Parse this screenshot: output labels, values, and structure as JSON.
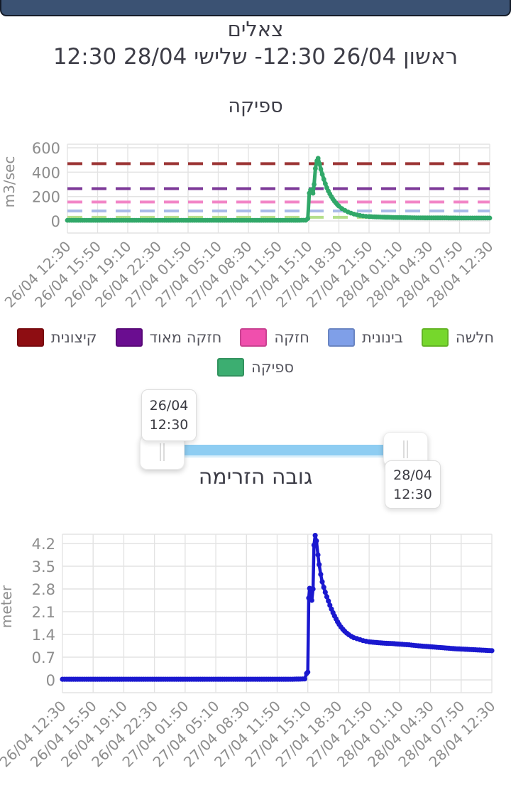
{
  "header": {
    "station_name": "צאלים",
    "date_range": "ראשון 26/04 12:30- שלישי 28/04 12:30"
  },
  "slider": {
    "start_date": "26/04",
    "start_time": "12:30",
    "end_date": "28/04",
    "end_time": "12:30",
    "track_color": "#8ecdf2"
  },
  "legend": {
    "row1": [
      {
        "label": "קיצונית",
        "color": "#8e0d12"
      },
      {
        "label": "חזקה מאוד",
        "color": "#6a0d90"
      },
      {
        "label": "חזקה",
        "color": "#f04fad"
      },
      {
        "label": "בינונית",
        "color": "#7f9fe8"
      },
      {
        "label": "חלשה",
        "color": "#76d72c"
      }
    ],
    "row2": [
      {
        "label": "ספיקה",
        "color": "#3cae71"
      }
    ]
  },
  "chart_data": [
    {
      "type": "line",
      "title": "ספיקה",
      "ylabel": "m3/sec",
      "yticks": [
        0,
        200,
        400,
        600
      ],
      "ylim": [
        0,
        600
      ],
      "grid": true,
      "x_tick_labels": [
        "26/04 12:30",
        "26/04 15:50",
        "26/04 19:10",
        "26/04 22:30",
        "27/04 01:50",
        "27/04 05:10",
        "27/04 08:30",
        "27/04 11:50",
        "27/04 15:10",
        "27/04 18:30",
        "27/04 21:50",
        "28/04 01:10",
        "28/04 04:30",
        "28/04 07:50",
        "28/04 12:30"
      ],
      "x_unit": "tick-index",
      "thresholds": [
        {
          "name": "קיצונית",
          "value": 470,
          "line_color": "#9c3434"
        },
        {
          "name": "חזקה מאוד",
          "value": 265,
          "line_color": "#7d3a99"
        },
        {
          "name": "חזקה",
          "value": 155,
          "line_color": "#f285c6"
        },
        {
          "name": "בינונית",
          "value": 82,
          "line_color": "#a9bbe8"
        },
        {
          "name": "חלשה",
          "value": 30,
          "line_color": "#b5df8b"
        }
      ],
      "series": [
        {
          "name": "ספיקה",
          "color": "#31a869",
          "points": [
            [
              0,
              5
            ],
            [
              0.5,
              5
            ],
            [
              1,
              5
            ],
            [
              1.5,
              5
            ],
            [
              2,
              5
            ],
            [
              2.5,
              5
            ],
            [
              3,
              5
            ],
            [
              3.5,
              5
            ],
            [
              4,
              5
            ],
            [
              4.5,
              5
            ],
            [
              5,
              5
            ],
            [
              5.5,
              5
            ],
            [
              6,
              5
            ],
            [
              6.5,
              5
            ],
            [
              7,
              5
            ],
            [
              7.5,
              5
            ],
            [
              7.9,
              6
            ],
            [
              7.97,
              20
            ],
            [
              8.02,
              228
            ],
            [
              8.06,
              256
            ],
            [
              8.1,
              240
            ],
            [
              8.14,
              227
            ],
            [
              8.18,
              300
            ],
            [
              8.22,
              430
            ],
            [
              8.27,
              492
            ],
            [
              8.31,
              514
            ],
            [
              8.36,
              468
            ],
            [
              8.4,
              425
            ],
            [
              8.45,
              382
            ],
            [
              8.5,
              342
            ],
            [
              8.55,
              305
            ],
            [
              8.6,
              272
            ],
            [
              8.65,
              245
            ],
            [
              8.7,
              222
            ],
            [
              8.75,
              200
            ],
            [
              8.8,
              180
            ],
            [
              8.85,
              163
            ],
            [
              8.9,
              148
            ],
            [
              8.95,
              134
            ],
            [
              9,
              122
            ],
            [
              9.1,
              101
            ],
            [
              9.2,
              86
            ],
            [
              9.3,
              74
            ],
            [
              9.4,
              64
            ],
            [
              9.5,
              56
            ],
            [
              9.6,
              50
            ],
            [
              9.7,
              45
            ],
            [
              9.8,
              41
            ],
            [
              9.9,
              38
            ],
            [
              10,
              36
            ],
            [
              10.25,
              33
            ],
            [
              10.5,
              31
            ],
            [
              10.75,
              29
            ],
            [
              11,
              28
            ],
            [
              11.5,
              26
            ],
            [
              12,
              25
            ],
            [
              12.5,
              25
            ],
            [
              13,
              24
            ],
            [
              13.5,
              24
            ],
            [
              14,
              24
            ]
          ]
        }
      ]
    },
    {
      "type": "line",
      "title": "גובה הזרימה",
      "ylabel": "meter",
      "yticks": [
        0,
        0.7,
        1.4,
        2.1,
        2.8,
        3.5,
        4.2
      ],
      "ylim": [
        0,
        4.5
      ],
      "grid": true,
      "x_tick_labels": [
        "26/04 12:30",
        "26/04 15:50",
        "26/04 19:10",
        "26/04 22:30",
        "27/04 01:50",
        "27/04 05:10",
        "27/04 08:30",
        "27/04 11:50",
        "27/04 15:10",
        "27/04 18:30",
        "27/04 21:50",
        "28/04 01:10",
        "28/04 04:30",
        "28/04 07:50",
        "28/04 12:30"
      ],
      "x_unit": "tick-index",
      "series": [
        {
          "name": "גובה הזרימה",
          "color": "#1a18cf",
          "points": [
            [
              0,
              0.02
            ],
            [
              0.5,
              0.02
            ],
            [
              1,
              0.02
            ],
            [
              1.5,
              0.02
            ],
            [
              2,
              0.02
            ],
            [
              2.5,
              0.02
            ],
            [
              3,
              0.02
            ],
            [
              3.5,
              0.02
            ],
            [
              4,
              0.02
            ],
            [
              4.5,
              0.02
            ],
            [
              5,
              0.02
            ],
            [
              5.5,
              0.02
            ],
            [
              6,
              0.02
            ],
            [
              6.5,
              0.02
            ],
            [
              7,
              0.02
            ],
            [
              7.5,
              0.02
            ],
            [
              7.9,
              0.03
            ],
            [
              7.96,
              0.2
            ],
            [
              8,
              0.24
            ],
            [
              8.03,
              2.52
            ],
            [
              8.06,
              2.82
            ],
            [
              8.1,
              2.55
            ],
            [
              8.13,
              2.45
            ],
            [
              8.17,
              2.8
            ],
            [
              8.2,
              4.15
            ],
            [
              8.24,
              4.45
            ],
            [
              8.28,
              4.28
            ],
            [
              8.33,
              3.85
            ],
            [
              8.37,
              3.55
            ],
            [
              8.42,
              3.25
            ],
            [
              8.47,
              3.02
            ],
            [
              8.52,
              2.85
            ],
            [
              8.57,
              2.7
            ],
            [
              8.62,
              2.56
            ],
            [
              8.67,
              2.43
            ],
            [
              8.72,
              2.3
            ],
            [
              8.77,
              2.18
            ],
            [
              8.82,
              2.07
            ],
            [
              8.87,
              1.97
            ],
            [
              8.92,
              1.88
            ],
            [
              8.97,
              1.79
            ],
            [
              9.02,
              1.71
            ],
            [
              9.08,
              1.63
            ],
            [
              9.14,
              1.56
            ],
            [
              9.2,
              1.5
            ],
            [
              9.27,
              1.44
            ],
            [
              9.34,
              1.39
            ],
            [
              9.42,
              1.34
            ],
            [
              9.5,
              1.3
            ],
            [
              9.6,
              1.27
            ],
            [
              9.7,
              1.24
            ],
            [
              9.8,
              1.21
            ],
            [
              9.9,
              1.19
            ],
            [
              10,
              1.17
            ],
            [
              10.25,
              1.15
            ],
            [
              10.5,
              1.13
            ],
            [
              10.75,
              1.12
            ],
            [
              11,
              1.1
            ],
            [
              11.3,
              1.08
            ],
            [
              11.6,
              1.05
            ],
            [
              12,
              1.02
            ],
            [
              12.4,
              0.99
            ],
            [
              12.8,
              0.96
            ],
            [
              13.2,
              0.94
            ],
            [
              13.6,
              0.92
            ],
            [
              14,
              0.9
            ]
          ]
        }
      ]
    }
  ]
}
